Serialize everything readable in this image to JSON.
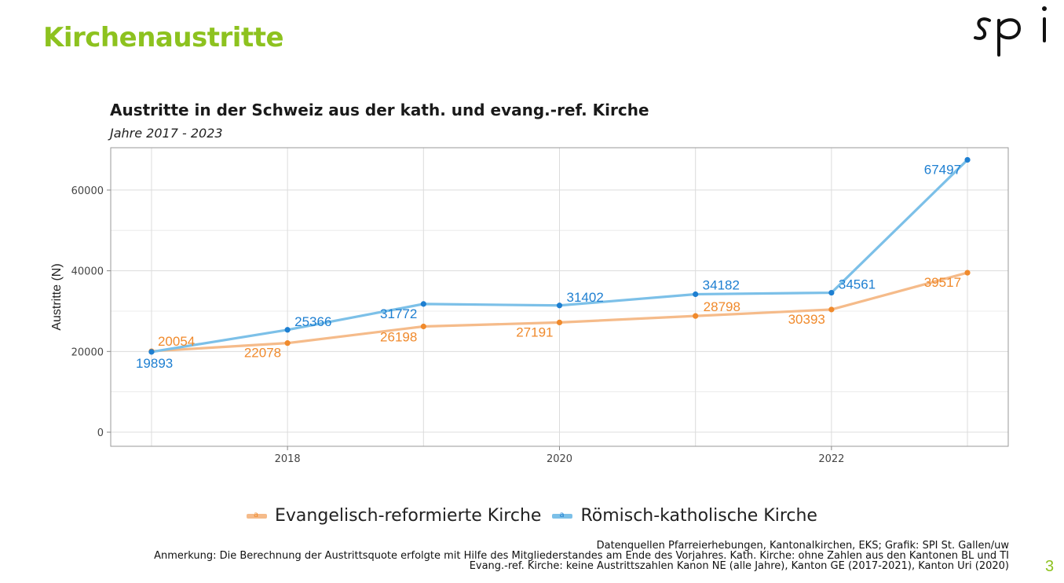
{
  "page": {
    "title": "Kirchenaustritte",
    "logo_text": "spi",
    "page_number": "3"
  },
  "colors": {
    "accent": "#8dc21f",
    "evang": "#f5bb8a",
    "evang_label": "#f08a2c",
    "kath": "#7cc0e8",
    "kath_label": "#1e7fd1"
  },
  "chart_data": {
    "type": "line",
    "title": "Austritte in der Schweiz aus der kath. und evang.-ref. Kirche",
    "subtitle": "Jahre 2017 - 2023",
    "ylabel": "Austritte (N)",
    "xlabel": "",
    "x": [
      2017,
      2018,
      2019,
      2020,
      2021,
      2022,
      2023
    ],
    "xlim": [
      2016.7,
      2023.3
    ],
    "ylim": [
      -3500,
      70500
    ],
    "x_ticks": [
      2018,
      2020,
      2022
    ],
    "y_ticks": [
      0,
      20000,
      40000,
      60000
    ],
    "grid": true,
    "legend_position": "bottom",
    "series": [
      {
        "name": "Evangelisch-reformierte Kirche",
        "values": [
          20054,
          22078,
          26198,
          27191,
          28798,
          30393,
          39517
        ]
      },
      {
        "name": "Römisch-katholische Kirche",
        "values": [
          19893,
          25366,
          31772,
          31402,
          34182,
          34561,
          67497
        ]
      }
    ]
  },
  "notes": {
    "line1": "Datenquellen Pfarreierhebungen, Kantonalkirchen, EKS; Grafik: SPI St. Gallen/uw",
    "line2": "Anmerkung: Die Berechnung der Austrittsquote erfolgte mit Hilfe des Mitgliederstandes am Ende des Vorjahres. Kath. Kirche: ohne Zahlen aus den Kantonen BL und TI",
    "line3": "Evang.-ref. Kirche: keine Austrittszahlen Kanon NE (alle Jahre), Kanton GE (2017-2021), Kanton Uri (2020)"
  }
}
